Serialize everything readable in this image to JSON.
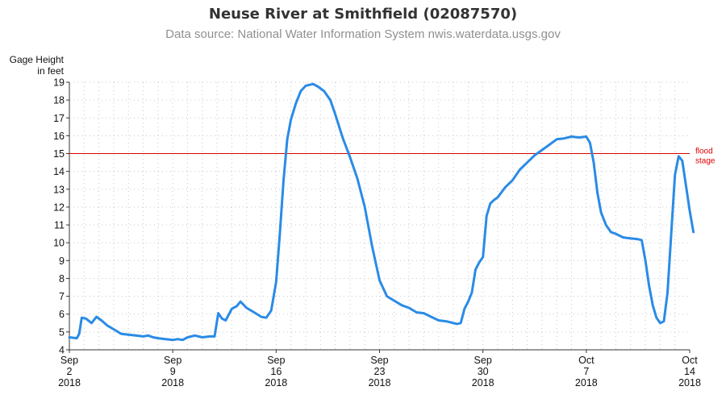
{
  "chart_data": {
    "type": "line",
    "title": "Neuse River at Smithfield (02087570)",
    "subtitle": "Data source: National Water Information System nwis.waterdata.usgs.gov",
    "ylabel": [
      "Gage Height",
      "in feet"
    ],
    "xlabel": "",
    "ylim": [
      4,
      19
    ],
    "yticks": [
      4,
      5,
      6,
      7,
      8,
      9,
      10,
      11,
      12,
      13,
      14,
      15,
      16,
      17,
      18,
      19
    ],
    "xlim": [
      "2018-09-02",
      "2018-10-14"
    ],
    "xticks": [
      {
        "date": "2018-09-02",
        "label": [
          "Sep",
          "2",
          "2018"
        ]
      },
      {
        "date": "2018-09-09",
        "label": [
          "Sep",
          "9",
          "2018"
        ]
      },
      {
        "date": "2018-09-16",
        "label": [
          "Sep",
          "16",
          "2018"
        ]
      },
      {
        "date": "2018-09-23",
        "label": [
          "Sep",
          "23",
          "2018"
        ]
      },
      {
        "date": "2018-09-30",
        "label": [
          "Sep",
          "30",
          "2018"
        ]
      },
      {
        "date": "2018-10-07",
        "label": [
          "Oct",
          "7",
          "2018"
        ]
      },
      {
        "date": "2018-10-14",
        "label": [
          "Oct",
          "14",
          "2018"
        ]
      }
    ],
    "grid": true,
    "reference_line": {
      "y": 15,
      "label": [
        "flood",
        "stage"
      ],
      "color": "#dd0000"
    },
    "series": [
      {
        "color": "#2a8be6",
        "points": [
          [
            "2018-09-02T00:00",
            4.7
          ],
          [
            "2018-09-02T12:00",
            4.65
          ],
          [
            "2018-09-02T16:00",
            4.9
          ],
          [
            "2018-09-02T20:00",
            5.8
          ],
          [
            "2018-09-03T03:00",
            5.75
          ],
          [
            "2018-09-03T12:00",
            5.5
          ],
          [
            "2018-09-03T20:00",
            5.85
          ],
          [
            "2018-09-04T04:00",
            5.65
          ],
          [
            "2018-09-04T14:00",
            5.35
          ],
          [
            "2018-09-05T00:00",
            5.15
          ],
          [
            "2018-09-05T12:00",
            4.9
          ],
          [
            "2018-09-06T00:00",
            4.85
          ],
          [
            "2018-09-06T12:00",
            4.8
          ],
          [
            "2018-09-07T00:00",
            4.75
          ],
          [
            "2018-09-07T08:00",
            4.8
          ],
          [
            "2018-09-07T16:00",
            4.7
          ],
          [
            "2018-09-08T00:00",
            4.65
          ],
          [
            "2018-09-08T12:00",
            4.6
          ],
          [
            "2018-09-09T00:00",
            4.55
          ],
          [
            "2018-09-09T08:00",
            4.6
          ],
          [
            "2018-09-09T16:00",
            4.55
          ],
          [
            "2018-09-10T00:00",
            4.7
          ],
          [
            "2018-09-10T12:00",
            4.8
          ],
          [
            "2018-09-11T00:00",
            4.7
          ],
          [
            "2018-09-11T12:00",
            4.75
          ],
          [
            "2018-09-11T20:00",
            4.75
          ],
          [
            "2018-09-12T02:00",
            6.05
          ],
          [
            "2018-09-12T08:00",
            5.75
          ],
          [
            "2018-09-12T14:00",
            5.65
          ],
          [
            "2018-09-13T00:00",
            6.3
          ],
          [
            "2018-09-13T08:00",
            6.45
          ],
          [
            "2018-09-13T14:00",
            6.7
          ],
          [
            "2018-09-14T00:00",
            6.35
          ],
          [
            "2018-09-14T12:00",
            6.1
          ],
          [
            "2018-09-15T00:00",
            5.85
          ],
          [
            "2018-09-15T08:00",
            5.8
          ],
          [
            "2018-09-15T16:00",
            6.2
          ],
          [
            "2018-09-16T00:00",
            7.8
          ],
          [
            "2018-09-16T06:00",
            10.5
          ],
          [
            "2018-09-16T12:00",
            13.5
          ],
          [
            "2018-09-16T18:00",
            15.8
          ],
          [
            "2018-09-17T00:00",
            16.9
          ],
          [
            "2018-09-17T08:00",
            17.8
          ],
          [
            "2018-09-17T16:00",
            18.5
          ],
          [
            "2018-09-18T00:00",
            18.8
          ],
          [
            "2018-09-18T12:00",
            18.9
          ],
          [
            "2018-09-18T20:00",
            18.75
          ],
          [
            "2018-09-19T06:00",
            18.5
          ],
          [
            "2018-09-19T16:00",
            18.0
          ],
          [
            "2018-09-20T00:00",
            17.2
          ],
          [
            "2018-09-20T12:00",
            15.9
          ],
          [
            "2018-09-21T00:00",
            14.8
          ],
          [
            "2018-09-21T12:00",
            13.6
          ],
          [
            "2018-09-22T00:00",
            12.0
          ],
          [
            "2018-09-22T12:00",
            9.8
          ],
          [
            "2018-09-23T00:00",
            7.9
          ],
          [
            "2018-09-23T12:00",
            7.0
          ],
          [
            "2018-09-24T00:00",
            6.75
          ],
          [
            "2018-09-24T12:00",
            6.5
          ],
          [
            "2018-09-25T00:00",
            6.35
          ],
          [
            "2018-09-25T12:00",
            6.1
          ],
          [
            "2018-09-26T00:00",
            6.05
          ],
          [
            "2018-09-26T12:00",
            5.85
          ],
          [
            "2018-09-27T00:00",
            5.65
          ],
          [
            "2018-09-27T12:00",
            5.6
          ],
          [
            "2018-09-28T00:00",
            5.5
          ],
          [
            "2018-09-28T06:00",
            5.45
          ],
          [
            "2018-09-28T12:00",
            5.5
          ],
          [
            "2018-09-28T18:00",
            6.3
          ],
          [
            "2018-09-29T00:00",
            6.7
          ],
          [
            "2018-09-29T06:00",
            7.2
          ],
          [
            "2018-09-29T12:00",
            8.5
          ],
          [
            "2018-09-29T18:00",
            8.9
          ],
          [
            "2018-09-30T00:00",
            9.2
          ],
          [
            "2018-09-30T06:00",
            11.5
          ],
          [
            "2018-09-30T12:00",
            12.2
          ],
          [
            "2018-09-30T18:00",
            12.4
          ],
          [
            "2018-10-01T00:00",
            12.55
          ],
          [
            "2018-10-01T12:00",
            13.1
          ],
          [
            "2018-10-02T00:00",
            13.5
          ],
          [
            "2018-10-02T12:00",
            14.1
          ],
          [
            "2018-10-03T00:00",
            14.5
          ],
          [
            "2018-10-03T12:00",
            14.9
          ],
          [
            "2018-10-04T00:00",
            15.2
          ],
          [
            "2018-10-04T12:00",
            15.5
          ],
          [
            "2018-10-05T00:00",
            15.8
          ],
          [
            "2018-10-05T12:00",
            15.85
          ],
          [
            "2018-10-06T00:00",
            15.95
          ],
          [
            "2018-10-06T12:00",
            15.9
          ],
          [
            "2018-10-07T00:00",
            15.95
          ],
          [
            "2018-10-07T06:00",
            15.6
          ],
          [
            "2018-10-07T12:00",
            14.5
          ],
          [
            "2018-10-07T18:00",
            12.8
          ],
          [
            "2018-10-08T00:00",
            11.7
          ],
          [
            "2018-10-08T08:00",
            11.0
          ],
          [
            "2018-10-08T16:00",
            10.6
          ],
          [
            "2018-10-09T00:00",
            10.5
          ],
          [
            "2018-10-09T12:00",
            10.3
          ],
          [
            "2018-10-10T00:00",
            10.25
          ],
          [
            "2018-10-10T12:00",
            10.2
          ],
          [
            "2018-10-10T18:00",
            10.15
          ],
          [
            "2018-10-11T00:00",
            9.0
          ],
          [
            "2018-10-11T06:00",
            7.6
          ],
          [
            "2018-10-11T12:00",
            6.5
          ],
          [
            "2018-10-11T18:00",
            5.8
          ],
          [
            "2018-10-12T00:00",
            5.5
          ],
          [
            "2018-10-12T06:00",
            5.6
          ],
          [
            "2018-10-12T12:00",
            7.2
          ],
          [
            "2018-10-12T18:00",
            10.5
          ],
          [
            "2018-10-13T00:00",
            13.8
          ],
          [
            "2018-10-13T06:00",
            14.85
          ],
          [
            "2018-10-13T12:00",
            14.6
          ],
          [
            "2018-10-13T18:00",
            13.2
          ],
          [
            "2018-10-14T00:00",
            11.8
          ],
          [
            "2018-10-14T06:00",
            10.6
          ]
        ]
      }
    ]
  }
}
